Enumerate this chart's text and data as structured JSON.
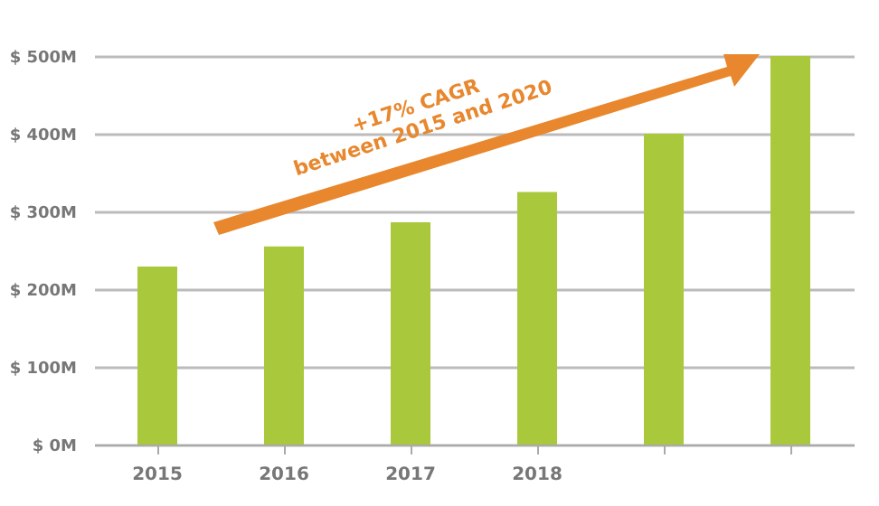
{
  "chart_data": {
    "type": "bar",
    "categories": [
      "2015",
      "2016",
      "2017",
      "2018",
      null,
      null
    ],
    "values": [
      229,
      255,
      286,
      325,
      400,
      500
    ],
    "color": "#a9c83c",
    "ylim": [
      0,
      500
    ],
    "yticks": [
      {
        "value": 0,
        "label": "$ 0M"
      },
      {
        "value": 100,
        "label": "$ 100M"
      },
      {
        "value": 200,
        "label": "$ 200M"
      },
      {
        "value": 300,
        "label": "$ 300M"
      },
      {
        "value": 400,
        "label": "$ 400M"
      },
      {
        "value": 500,
        "label": "$ 500M"
      }
    ],
    "grid": "y",
    "annotations": [
      "+17% CAGR\nbetween 2015 and 2020"
    ]
  }
}
